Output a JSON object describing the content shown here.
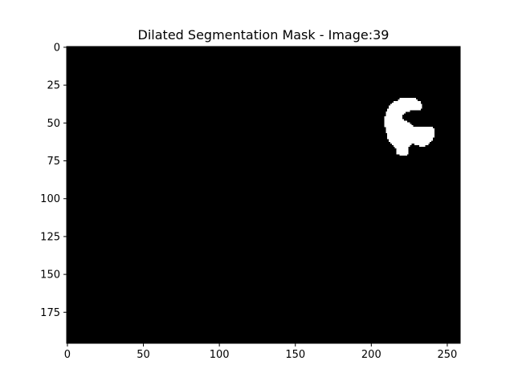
{
  "chart_data": {
    "type": "heatmap",
    "title": "Dilated Segmentation Mask - Image:39",
    "xlabel": "",
    "ylabel": "",
    "image_width": 259,
    "image_height": 196,
    "xlim": [
      -0.5,
      258.5
    ],
    "ylim": [
      195.5,
      -0.5
    ],
    "x_ticks": [
      0,
      50,
      100,
      150,
      200,
      250
    ],
    "y_ticks": [
      0,
      25,
      50,
      75,
      100,
      125,
      150,
      175
    ],
    "background_color": "#000000",
    "mask_color": "#ffffff",
    "grid": false,
    "mask_rows": [
      {
        "y": 34,
        "x0": 219,
        "x1": 229
      },
      {
        "y": 35,
        "x0": 218,
        "x1": 230
      },
      {
        "y": 36,
        "x0": 215,
        "x1": 232
      },
      {
        "y": 37,
        "x0": 214,
        "x1": 232
      },
      {
        "y": 38,
        "x0": 213,
        "x1": 233
      },
      {
        "y": 39,
        "x0": 212,
        "x1": 233
      },
      {
        "y": 40,
        "x0": 212,
        "x1": 233
      },
      {
        "y": 41,
        "x0": 211,
        "x1": 232
      },
      {
        "y": 42,
        "x0": 211,
        "x1": 225
      },
      {
        "y": 43,
        "x0": 210,
        "x1": 222
      },
      {
        "y": 44,
        "x0": 210,
        "x1": 221
      },
      {
        "y": 45,
        "x0": 210,
        "x1": 220
      },
      {
        "y": 46,
        "x0": 209,
        "x1": 220
      },
      {
        "y": 47,
        "x0": 209,
        "x1": 220
      },
      {
        "y": 48,
        "x0": 209,
        "x1": 221
      },
      {
        "y": 49,
        "x0": 209,
        "x1": 223
      },
      {
        "y": 50,
        "x0": 209,
        "x1": 225
      },
      {
        "y": 51,
        "x0": 209,
        "x1": 226
      },
      {
        "y": 52,
        "x0": 209,
        "x1": 227
      },
      {
        "y": 53,
        "x0": 210,
        "x1": 240
      },
      {
        "y": 54,
        "x0": 210,
        "x1": 241
      },
      {
        "y": 55,
        "x0": 210,
        "x1": 241
      },
      {
        "y": 56,
        "x0": 210,
        "x1": 241
      },
      {
        "y": 57,
        "x0": 211,
        "x1": 241
      },
      {
        "y": 58,
        "x0": 211,
        "x1": 241
      },
      {
        "y": 59,
        "x0": 211,
        "x1": 241
      },
      {
        "y": 60,
        "x0": 211,
        "x1": 240
      },
      {
        "y": 61,
        "x0": 212,
        "x1": 240
      },
      {
        "y": 62,
        "x0": 212,
        "x1": 239
      },
      {
        "y": 63,
        "x0": 213,
        "x1": 238
      },
      {
        "y": 64,
        "x0": 214,
        "x1": 226
      },
      {
        "y": 64,
        "x0": 229,
        "x1": 237
      },
      {
        "y": 65,
        "x0": 215,
        "x1": 225
      },
      {
        "y": 65,
        "x0": 232,
        "x1": 235
      },
      {
        "y": 66,
        "x0": 216,
        "x1": 224
      },
      {
        "y": 67,
        "x0": 217,
        "x1": 224
      },
      {
        "y": 68,
        "x0": 217,
        "x1": 224
      },
      {
        "y": 69,
        "x0": 217,
        "x1": 224
      },
      {
        "y": 70,
        "x0": 217,
        "x1": 224
      },
      {
        "y": 71,
        "x0": 219,
        "x1": 223
      }
    ]
  }
}
